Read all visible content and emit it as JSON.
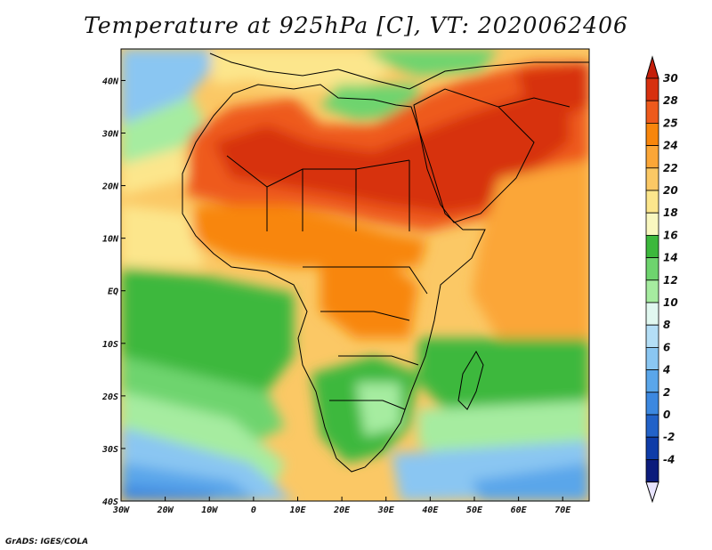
{
  "title": "Temperature at 925hPa [C], VT: 2020062406",
  "credit": "GrADS: IGES/COLA",
  "map": {
    "lon_range": [
      -30,
      76
    ],
    "lat_range": [
      -40,
      46
    ],
    "x_ticks": [
      {
        "lon": -30,
        "label": "30W"
      },
      {
        "lon": -20,
        "label": "20W"
      },
      {
        "lon": -10,
        "label": "10W"
      },
      {
        "lon": 0,
        "label": "0"
      },
      {
        "lon": 10,
        "label": "10E"
      },
      {
        "lon": 20,
        "label": "20E"
      },
      {
        "lon": 30,
        "label": "30E"
      },
      {
        "lon": 40,
        "label": "40E"
      },
      {
        "lon": 50,
        "label": "50E"
      },
      {
        "lon": 60,
        "label": "60E"
      },
      {
        "lon": 70,
        "label": "70E"
      }
    ],
    "y_ticks": [
      {
        "lat": 40,
        "label": "40N"
      },
      {
        "lat": 30,
        "label": "30N"
      },
      {
        "lat": 20,
        "label": "20N"
      },
      {
        "lat": 10,
        "label": "10N"
      },
      {
        "lat": 0,
        "label": "EQ"
      },
      {
        "lat": -10,
        "label": "10S"
      },
      {
        "lat": -20,
        "label": "20S"
      },
      {
        "lat": -30,
        "label": "30S"
      },
      {
        "lat": -40,
        "label": "40S"
      }
    ]
  },
  "colorbar": {
    "levels": [
      "30",
      "28",
      "25",
      "24",
      "22",
      "20",
      "18",
      "16",
      "14",
      "12",
      "10",
      "8",
      "6",
      "4",
      "2",
      "0",
      "-2",
      "-4"
    ],
    "colors": [
      "#d7300f",
      "#ee5a1c",
      "#f8860c",
      "#fba637",
      "#fbc865",
      "#fce68c",
      "#f9f7bf",
      "#3cb83c",
      "#6ed46e",
      "#a6eca0",
      "#e1f8f0",
      "#b4def6",
      "#8ac6f2",
      "#5aa6ea",
      "#3c88e0",
      "#2262c8",
      "#0e3ca8",
      "#0c1c7c"
    ],
    "top_color": "#c41e0a",
    "bottom_color": "#e8e4ff"
  }
}
